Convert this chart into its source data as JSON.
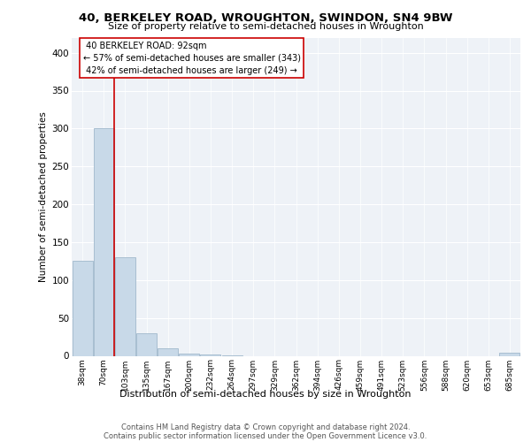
{
  "title": "40, BERKELEY ROAD, WROUGHTON, SWINDON, SN4 9BW",
  "subtitle": "Size of property relative to semi-detached houses in Wroughton",
  "xlabel": "Distribution of semi-detached houses by size in Wroughton",
  "ylabel": "Number of semi-detached properties",
  "bin_labels": [
    "38sqm",
    "70sqm",
    "103sqm",
    "135sqm",
    "167sqm",
    "200sqm",
    "232sqm",
    "264sqm",
    "297sqm",
    "329sqm",
    "362sqm",
    "394sqm",
    "426sqm",
    "459sqm",
    "491sqm",
    "523sqm",
    "556sqm",
    "588sqm",
    "620sqm",
    "653sqm",
    "685sqm"
  ],
  "bar_values": [
    125,
    300,
    130,
    30,
    10,
    3,
    2,
    1,
    0,
    0,
    0,
    0,
    0,
    0,
    0,
    0,
    0,
    0,
    0,
    0,
    4
  ],
  "bar_color": "#c8d9e8",
  "bar_edge_color": "#a0b8cc",
  "property_sqm": 92,
  "property_label": "40 BERKELEY ROAD: 92sqm",
  "pct_smaller": 57,
  "num_smaller": 343,
  "pct_larger": 42,
  "num_larger": 249,
  "annotation_box_color": "#ffffff",
  "annotation_box_edge": "#cc0000",
  "line_color": "#cc0000",
  "ylim": [
    0,
    420
  ],
  "yticks": [
    0,
    50,
    100,
    150,
    200,
    250,
    300,
    350,
    400
  ],
  "background_color": "#eef2f7",
  "footer_line1": "Contains HM Land Registry data © Crown copyright and database right 2024.",
  "footer_line2": "Contains public sector information licensed under the Open Government Licence v3.0."
}
